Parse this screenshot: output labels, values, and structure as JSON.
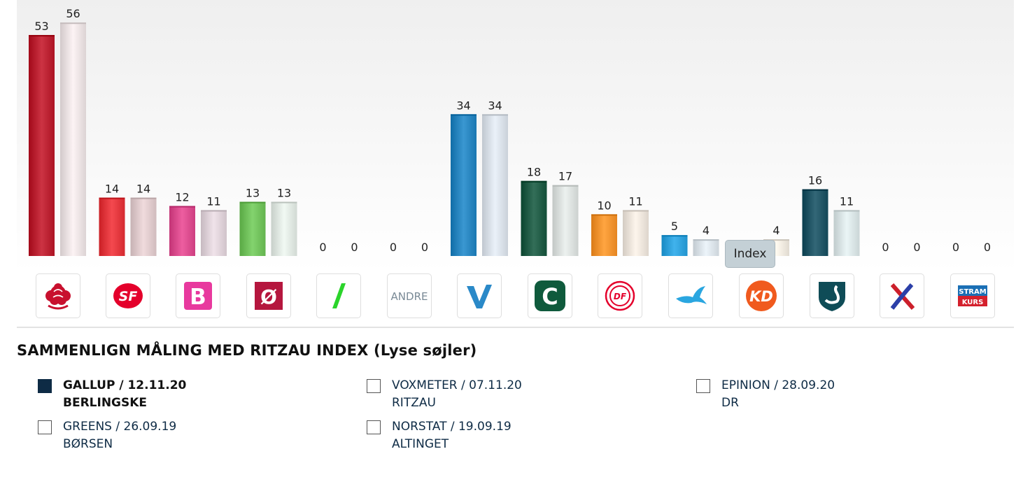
{
  "chart_data": {
    "type": "bar",
    "categories": [
      "A",
      "SF",
      "B",
      "Ø",
      "Å",
      "ANDRE",
      "V",
      "C",
      "DF",
      "I",
      "KD",
      "D",
      "E",
      "P"
    ],
    "series": [
      {
        "name": "GALLUP / 12.11.20",
        "values": [
          53,
          14,
          12,
          13,
          0,
          0,
          34,
          18,
          10,
          5,
          null,
          16,
          0,
          0
        ]
      },
      {
        "name": "Index",
        "values": [
          56,
          14,
          11,
          13,
          0,
          0,
          34,
          17,
          11,
          4,
          4,
          11,
          0,
          0
        ]
      }
    ],
    "ylim": [
      0,
      60
    ],
    "colors": {
      "poll": [
        "#b81f2f",
        "#e0353b",
        "#d94a8c",
        "#6fbf5a",
        "#3db83b",
        "#8ca0ae",
        "#2683bd",
        "#1f5a44",
        "#f0912d",
        "#2d9fd9",
        "#f25c1f",
        "#1f5363",
        "#c2232c",
        "#2b5aa8"
      ],
      "index": [
        "#e8dfe0",
        "#dcc7c9",
        "#dccfd6",
        "#dde5df",
        "#dde5df",
        "#dde5df",
        "#d6dde5",
        "#d8dddb",
        "#e9e1d8",
        "#d8e0e6",
        "#ece6dc",
        "#d6e1e2",
        "#e6e6e6",
        "#e6e6e6"
      ]
    }
  },
  "parties": [
    {
      "icon": "rose-icon",
      "text": "",
      "color": "#c8102e"
    },
    {
      "icon": "sf-logo-icon",
      "text": "SF",
      "color": "#e4002b"
    },
    {
      "icon": "b-logo-icon",
      "text": "B",
      "color": "#e8399e"
    },
    {
      "icon": "oe-logo-icon",
      "text": "Ø",
      "color": "#b5163e"
    },
    {
      "icon": "aa-slash-icon",
      "text": "",
      "color": "#2bd42b"
    },
    {
      "icon": "andre-text-icon",
      "text": "ANDRE",
      "color": "#7a8a96"
    },
    {
      "icon": "v-logo-icon",
      "text": "",
      "color": "#2a89c8"
    },
    {
      "icon": "c-logo-icon",
      "text": "C",
      "color": "#0f5a3c"
    },
    {
      "icon": "df-logo-icon",
      "text": "DF",
      "color": "#e4002b"
    },
    {
      "icon": "bird-logo-icon",
      "text": "",
      "color": "#2aa6e0"
    },
    {
      "icon": "kd-logo-icon",
      "text": "KD",
      "color": "#f05a1e"
    },
    {
      "icon": "swan-logo-icon",
      "text": "",
      "color": "#0f4c57"
    },
    {
      "icon": "cross-logo-icon",
      "text": "",
      "color": "#cc1f2b"
    },
    {
      "icon": "stramkurs-logo-icon",
      "text_top": "STRAM",
      "text_bottom": "KURS",
      "color": "#d4202c",
      "color_top": "#1a6fb5"
    }
  ],
  "tooltip": {
    "label": "Index"
  },
  "compare": {
    "heading": "SAMMENLIGN MÅLING MED RITZAU INDEX (Lyse søjler)",
    "polls": [
      {
        "line1": "GALLUP / 12.11.20",
        "line2": "BERLINGSKE",
        "checked": true
      },
      {
        "line1": "VOXMETER / 07.11.20",
        "line2": "RITZAU",
        "checked": false
      },
      {
        "line1": "EPINION / 28.09.20",
        "line2": "DR",
        "checked": false
      },
      {
        "line1": "GREENS / 26.09.19",
        "line2": "BØRSEN",
        "checked": false
      },
      {
        "line1": "NORSTAT / 19.09.19",
        "line2": "ALTINGET",
        "checked": false
      }
    ]
  }
}
